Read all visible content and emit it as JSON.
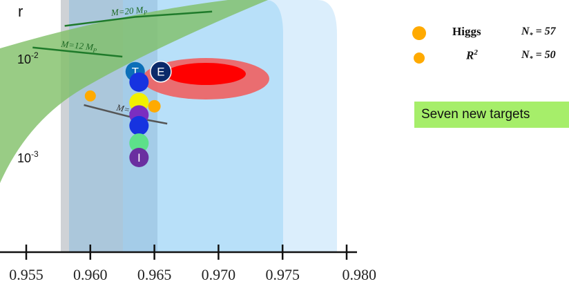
{
  "chart_data": {
    "type": "scatter",
    "xlabel": "",
    "ylabel": "r",
    "xlim": [
      0.955,
      0.98
    ],
    "ylog": true,
    "x_ticks": [
      "0.955",
      "0.960",
      "0.965",
      "0.970",
      "0.975",
      "0.980"
    ],
    "y_ticks": [
      {
        "base": "10",
        "exp": "-2"
      },
      {
        "base": "10",
        "exp": "-3"
      }
    ],
    "colors": {
      "band_gray": "#cfd2d6",
      "band_steel": "#a8c2d6",
      "band_blue_outer": "#dbeefc",
      "band_blue_inner": "#b8e0f9",
      "green_band": "#7fbf66",
      "contour_outer": "#f06060",
      "contour_inner": "#ff0000",
      "higgs": "#ffaa00",
      "target_T": "#0c6fb8",
      "target_E": "#0b2a6a"
    },
    "mass_lines": [
      {
        "label": "M=20 M",
        "sub": "P",
        "r_at_ns": [
          [
            0.958,
            0.0215
          ],
          [
            0.9635,
            0.0265
          ],
          [
            0.9695,
            0.03
          ]
        ]
      },
      {
        "label": "M=12 M",
        "sub": "P",
        "r_at_ns": [
          [
            0.9555,
            0.013
          ],
          [
            0.9595,
            0.0115
          ],
          [
            0.9625,
            0.0105
          ]
        ]
      },
      {
        "label": "M=2 M",
        "sub": "",
        "r_at_ns": [
          [
            0.9595,
            0.0034
          ],
          [
            0.963,
            0.0026
          ],
          [
            0.966,
            0.0022
          ]
        ]
      }
    ],
    "higgs_points": [
      {
        "name": "Higgs",
        "ns": 0.965,
        "r": 0.0033
      },
      {
        "name": "R2",
        "ns": 0.96,
        "r": 0.0042
      }
    ],
    "targets": [
      {
        "label": "T",
        "ns": 0.9635,
        "r": 0.0074,
        "color": "#0c6fb8"
      },
      {
        "label": "E",
        "ns": 0.9655,
        "r": 0.0074,
        "color": "#0b2a6a"
      },
      {
        "label": "",
        "ns": 0.9638,
        "r": 0.0058,
        "color": "#1633e0"
      },
      {
        "label": "",
        "ns": 0.9638,
        "r": 0.0036,
        "color": "#f2f000"
      },
      {
        "label": "",
        "ns": 0.9638,
        "r": 0.0027,
        "color": "#7b2ec0"
      },
      {
        "label": "",
        "ns": 0.9638,
        "r": 0.0021,
        "color": "#1633e0"
      },
      {
        "label": "",
        "ns": 0.9638,
        "r": 0.0014,
        "color": "#5de08a"
      },
      {
        "label": "I",
        "ns": 0.9638,
        "r": 0.001,
        "color": "#6a2ea0"
      }
    ]
  },
  "legend": [
    {
      "name": "Higgs",
      "ns_label": "N",
      "ns_sub": "*",
      "ns_value": "= 57",
      "color": "#ffaa00"
    },
    {
      "name": "R",
      "name_sup": "2",
      "ns_label": "N",
      "ns_sub": "*",
      "ns_value": "= 50",
      "color": "#ffaa00"
    }
  ],
  "annotation": "Seven new targets"
}
